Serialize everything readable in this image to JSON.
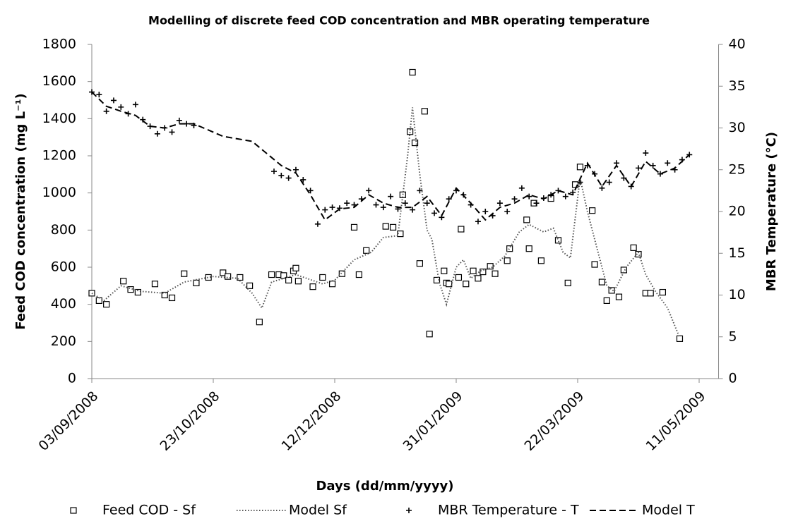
{
  "chart_data": {
    "type": "combo",
    "title": "Modelling of discrete feed COD concentration and MBR operating temperature",
    "x_label": "Days (dd/mm/yyyy)",
    "y_label": "Feed COD concentration (mg L⁻¹)",
    "y2_label": "MBR Temperature (°C)",
    "xlim": [
      "2008-09-03",
      "2009-05-19"
    ],
    "xticks": [
      {
        "value": "2008-09-03",
        "label": "03/09/2008"
      },
      {
        "value": "2008-10-23",
        "label": "23/10/2008"
      },
      {
        "value": "2008-12-12",
        "label": "12/12/2008"
      },
      {
        "value": "2009-01-31",
        "label": "31/01/2009"
      },
      {
        "value": "2009-03-22",
        "label": "22/03/2009"
      },
      {
        "value": "2009-05-11",
        "label": "11/05/2009"
      }
    ],
    "ylim": [
      0,
      1800
    ],
    "yticks": [
      0,
      200,
      400,
      600,
      800,
      1000,
      1200,
      1400,
      1600,
      1800
    ],
    "y2lim": [
      0,
      40
    ],
    "y2ticks": [
      0,
      5,
      10,
      15,
      20,
      25,
      30,
      35,
      40
    ],
    "grid": false,
    "series": [
      {
        "name": "Feed COD - Sf",
        "type": "scatter",
        "marker": "square",
        "color": "#000000",
        "x": [
          "2008-09-03",
          "2008-09-06",
          "2008-09-09",
          "2008-09-16",
          "2008-09-19",
          "2008-09-22",
          "2008-09-29",
          "2008-10-03",
          "2008-10-06",
          "2008-10-11",
          "2008-10-16",
          "2008-10-21",
          "2008-10-27",
          "2008-10-29",
          "2008-11-03",
          "2008-11-07",
          "2008-11-11",
          "2008-11-16",
          "2008-11-19",
          "2008-11-21",
          "2008-11-23",
          "2008-11-25",
          "2008-11-26",
          "2008-11-27",
          "2008-12-03",
          "2008-12-07",
          "2008-12-11",
          "2008-12-15",
          "2008-12-20",
          "2008-12-22",
          "2008-12-25",
          "2009-01-02",
          "2009-01-05",
          "2009-01-08",
          "2009-01-09",
          "2009-01-12",
          "2009-01-13",
          "2009-01-14",
          "2009-01-16",
          "2009-01-18",
          "2009-01-20",
          "2009-01-23",
          "2009-01-26",
          "2009-01-27",
          "2009-01-28",
          "2009-02-01",
          "2009-02-02",
          "2009-02-04",
          "2009-02-07",
          "2009-02-09",
          "2009-02-11",
          "2009-02-14",
          "2009-02-16",
          "2009-02-21",
          "2009-02-22",
          "2009-03-01",
          "2009-03-02",
          "2009-03-04",
          "2009-03-07",
          "2009-03-11",
          "2009-03-14",
          "2009-03-18",
          "2009-03-21",
          "2009-03-23",
          "2009-03-28",
          "2009-03-29",
          "2009-04-01",
          "2009-04-03",
          "2009-04-05",
          "2009-04-08",
          "2009-04-10",
          "2009-04-14",
          "2009-04-16",
          "2009-04-19",
          "2009-04-21",
          "2009-04-26",
          "2009-05-03"
        ],
        "values": [
          460,
          420,
          400,
          525,
          480,
          465,
          510,
          450,
          435,
          565,
          515,
          545,
          570,
          550,
          545,
          500,
          305,
          560,
          560,
          555,
          530,
          580,
          595,
          525,
          495,
          545,
          510,
          565,
          815,
          560,
          690,
          820,
          815,
          780,
          990,
          1330,
          1650,
          1270,
          620,
          1440,
          240,
          530,
          580,
          515,
          510,
          545,
          805,
          510,
          580,
          540,
          575,
          605,
          565,
          635,
          700,
          855,
          700,
          945,
          635,
          970,
          745,
          515,
          1045,
          1140,
          905,
          615,
          520,
          420,
          475,
          440,
          585,
          705,
          670,
          460,
          460,
          465,
          215
        ]
      },
      {
        "name": "Model Sf",
        "type": "line",
        "dash": "1.5 2.5",
        "color": "#555555",
        "x": [
          "2008-09-03",
          "2008-09-08",
          "2008-09-15",
          "2008-09-23",
          "2008-10-03",
          "2008-10-11",
          "2008-10-23",
          "2008-11-02",
          "2008-11-08",
          "2008-11-12",
          "2008-11-16",
          "2008-11-26",
          "2008-12-07",
          "2008-12-12",
          "2008-12-20",
          "2008-12-27",
          "2009-01-01",
          "2009-01-07",
          "2009-01-11",
          "2009-01-13",
          "2009-01-16",
          "2009-01-19",
          "2009-01-21",
          "2009-01-24",
          "2009-01-27",
          "2009-01-31",
          "2009-02-03",
          "2009-02-06",
          "2009-02-10",
          "2009-02-15",
          "2009-02-20",
          "2009-02-26",
          "2009-03-02",
          "2009-03-08",
          "2009-03-12",
          "2009-03-16",
          "2009-03-19",
          "2009-03-23",
          "2009-03-26",
          "2009-03-30",
          "2009-04-03",
          "2009-04-06",
          "2009-04-11",
          "2009-04-16",
          "2009-04-19",
          "2009-04-23",
          "2009-04-28",
          "2009-05-03"
        ],
        "values": [
          460,
          420,
          500,
          470,
          460,
          520,
          550,
          540,
          460,
          380,
          520,
          560,
          510,
          530,
          640,
          680,
          760,
          770,
          1200,
          1460,
          1100,
          800,
          750,
          520,
          400,
          600,
          640,
          540,
          580,
          600,
          660,
          790,
          830,
          790,
          810,
          680,
          650,
          1080,
          900,
          700,
          500,
          470,
          600,
          680,
          560,
          470,
          380,
          220
        ]
      },
      {
        "name": "MBR Temperature - T",
        "type": "scatter",
        "marker": "plus",
        "axis": "y2",
        "color": "#000000",
        "x": [
          "2008-09-03",
          "2008-09-06",
          "2008-09-09",
          "2008-09-12",
          "2008-09-15",
          "2008-09-18",
          "2008-09-21",
          "2008-09-24",
          "2008-09-27",
          "2008-09-30",
          "2008-10-03",
          "2008-10-06",
          "2008-10-09",
          "2008-10-12",
          "2008-10-15",
          "2008-11-17",
          "2008-11-20",
          "2008-11-23",
          "2008-11-26",
          "2008-11-29",
          "2008-12-02",
          "2008-12-05",
          "2008-12-08",
          "2008-12-11",
          "2008-12-14",
          "2008-12-17",
          "2008-12-20",
          "2008-12-23",
          "2008-12-26",
          "2008-12-29",
          "2009-01-01",
          "2009-01-04",
          "2009-01-07",
          "2009-01-10",
          "2009-01-13",
          "2009-01-16",
          "2009-01-19",
          "2009-01-22",
          "2009-01-25",
          "2009-01-28",
          "2009-01-31",
          "2009-02-03",
          "2009-02-06",
          "2009-02-09",
          "2009-02-12",
          "2009-02-15",
          "2009-02-18",
          "2009-02-21",
          "2009-02-24",
          "2009-02-27",
          "2009-03-02",
          "2009-03-05",
          "2009-03-08",
          "2009-03-11",
          "2009-03-14",
          "2009-03-17",
          "2009-03-20",
          "2009-03-23",
          "2009-03-26",
          "2009-03-29",
          "2009-04-01",
          "2009-04-04",
          "2009-04-07",
          "2009-04-10",
          "2009-04-13",
          "2009-04-16",
          "2009-04-19",
          "2009-04-22",
          "2009-04-25",
          "2009-04-28",
          "2009-05-01",
          "2009-05-04",
          "2009-05-07"
        ],
        "values": [
          34.3,
          34.0,
          32.0,
          33.3,
          32.5,
          31.7,
          32.8,
          31.0,
          30.2,
          29.3,
          30.0,
          29.5,
          30.9,
          30.5,
          30.3,
          24.8,
          24.3,
          24.0,
          25.0,
          23.8,
          22.5,
          18.5,
          20.2,
          20.5,
          20.4,
          21.0,
          20.8,
          21.5,
          22.5,
          20.8,
          20.5,
          21.8,
          20.3,
          21.0,
          20.2,
          22.5,
          21.0,
          19.8,
          19.3,
          21.5,
          22.5,
          22.0,
          20.8,
          18.8,
          20.0,
          19.5,
          21.0,
          20.0,
          21.5,
          22.8,
          21.8,
          21.0,
          21.6,
          22.0,
          22.5,
          21.8,
          22.3,
          23.5,
          25.5,
          24.5,
          22.8,
          23.5,
          25.8,
          24.0,
          23.0,
          25.2,
          27.0,
          25.5,
          24.5,
          25.8,
          25.0,
          26.2,
          26.8
        ]
      },
      {
        "name": "Model T",
        "type": "line",
        "dash": "9 5",
        "axis": "y2",
        "color": "#000000",
        "x": [
          "2008-09-03",
          "2008-09-09",
          "2008-09-15",
          "2008-09-21",
          "2008-09-27",
          "2008-10-03",
          "2008-10-09",
          "2008-10-15",
          "2008-10-27",
          "2008-11-08",
          "2008-11-20",
          "2008-11-26",
          "2008-12-02",
          "2008-12-08",
          "2008-12-14",
          "2008-12-20",
          "2008-12-26",
          "2009-01-01",
          "2009-01-07",
          "2009-01-13",
          "2009-01-19",
          "2009-01-25",
          "2009-01-31",
          "2009-02-06",
          "2009-02-12",
          "2009-02-18",
          "2009-02-24",
          "2009-03-02",
          "2009-03-08",
          "2009-03-14",
          "2009-03-20",
          "2009-03-26",
          "2009-04-01",
          "2009-04-07",
          "2009-04-13",
          "2009-04-19",
          "2009-04-25",
          "2009-05-01",
          "2009-05-07"
        ],
        "values": [
          34.3,
          32.6,
          32.0,
          31.5,
          30.2,
          30.0,
          30.5,
          30.5,
          29.0,
          28.4,
          25.5,
          24.6,
          22.0,
          19.0,
          20.3,
          20.5,
          22.0,
          21.0,
          20.5,
          20.5,
          21.8,
          19.5,
          22.8,
          21.0,
          19.0,
          20.5,
          21.0,
          22.0,
          21.5,
          22.5,
          22.0,
          25.8,
          23.0,
          25.5,
          23.0,
          26.0,
          24.5,
          25.2,
          26.8
        ]
      }
    ]
  }
}
